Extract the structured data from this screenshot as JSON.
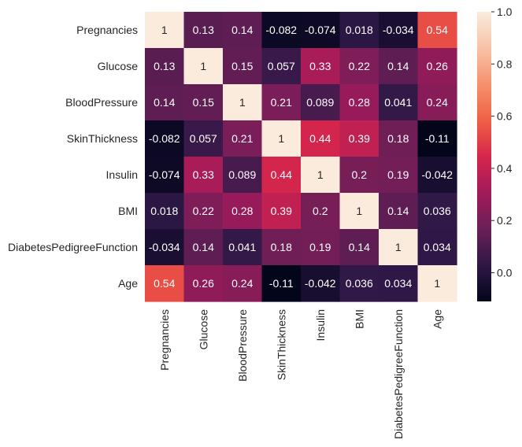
{
  "chart_data": {
    "type": "heatmap",
    "title": "",
    "xlabel": "",
    "ylabel": "",
    "row_labels": [
      "Pregnancies",
      "Glucose",
      "BloodPressure",
      "SkinThickness",
      "Insulin",
      "BMI",
      "DiabetesPedigreeFunction",
      "Age"
    ],
    "col_labels": [
      "Pregnancies",
      "Glucose",
      "BloodPressure",
      "SkinThickness",
      "Insulin",
      "BMI",
      "DiabetesPedigreeFunction",
      "Age"
    ],
    "values": [
      [
        1,
        0.13,
        0.14,
        -0.082,
        -0.074,
        0.018,
        -0.034,
        0.54
      ],
      [
        0.13,
        1,
        0.15,
        0.057,
        0.33,
        0.22,
        0.14,
        0.26
      ],
      [
        0.14,
        0.15,
        1,
        0.21,
        0.089,
        0.28,
        0.041,
        0.24
      ],
      [
        -0.082,
        0.057,
        0.21,
        1,
        0.44,
        0.39,
        0.18,
        -0.11
      ],
      [
        -0.074,
        0.33,
        0.089,
        0.44,
        1,
        0.2,
        0.19,
        -0.042
      ],
      [
        0.018,
        0.22,
        0.28,
        0.39,
        0.2,
        1,
        0.14,
        0.036
      ],
      [
        -0.034,
        0.14,
        0.041,
        0.18,
        0.19,
        0.14,
        1,
        0.034
      ],
      [
        0.54,
        0.26,
        0.24,
        -0.11,
        -0.042,
        0.036,
        0.034,
        1
      ]
    ],
    "annotations": [
      [
        "1",
        "0.13",
        "0.14",
        "-0.082",
        "-0.074",
        "0.018",
        "-0.034",
        "0.54"
      ],
      [
        "0.13",
        "1",
        "0.15",
        "0.057",
        "0.33",
        "0.22",
        "0.14",
        "0.26"
      ],
      [
        "0.14",
        "0.15",
        "1",
        "0.21",
        "0.089",
        "0.28",
        "0.041",
        "0.24"
      ],
      [
        "-0.082",
        "0.057",
        "0.21",
        "1",
        "0.44",
        "0.39",
        "0.18",
        "-0.11"
      ],
      [
        "-0.074",
        "0.33",
        "0.089",
        "0.44",
        "1",
        "0.2",
        "0.19",
        "-0.042"
      ],
      [
        "0.018",
        "0.22",
        "0.28",
        "0.39",
        "0.2",
        "1",
        "0.14",
        "0.036"
      ],
      [
        "-0.034",
        "0.14",
        "0.041",
        "0.18",
        "0.19",
        "0.14",
        "1",
        "0.034"
      ],
      [
        "0.54",
        "0.26",
        "0.24",
        "-0.11",
        "-0.042",
        "0.036",
        "0.034",
        "1"
      ]
    ],
    "colorbar": {
      "vmin": -0.11,
      "vmax": 1.0,
      "ticks": [
        0.0,
        0.2,
        0.4,
        0.6,
        0.8,
        1.0
      ],
      "tick_labels": [
        "0.0",
        "0.2",
        "0.4",
        "0.6",
        "0.8",
        "1.0"
      ],
      "colormap": "rocket",
      "colormap_stops": [
        "#03051a",
        "#2d1846",
        "#6a1f56",
        "#a11a5b",
        "#d6254c",
        "#f06043",
        "#f5916e",
        "#f7c3a8",
        "#faebdd"
      ]
    },
    "grid": false,
    "legend": "colorbar-right"
  }
}
